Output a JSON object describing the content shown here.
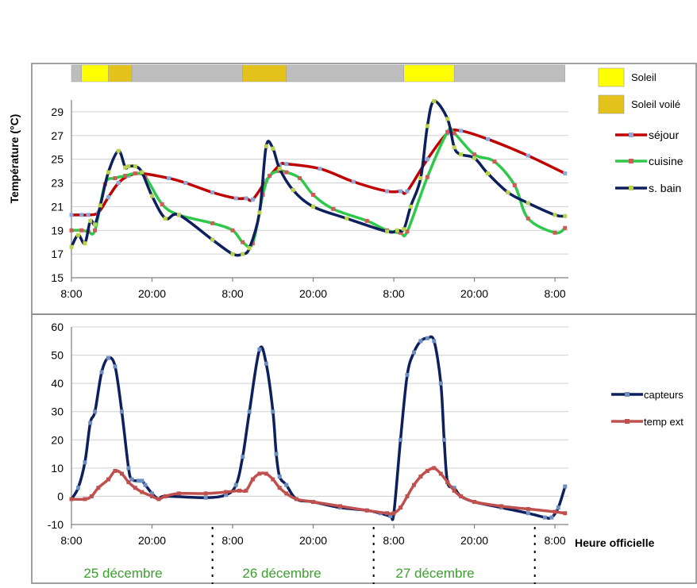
{
  "chart_data": [
    {
      "type": "line",
      "ylabel": "Température (°C)",
      "ylim": [
        15,
        30
      ],
      "yticks": [
        15,
        17,
        19,
        21,
        23,
        25,
        27,
        29
      ],
      "x_unit": "hours since 25 décembre 00:00",
      "xlim": [
        8,
        82
      ],
      "xticks": [
        {
          "x": 8,
          "label": "8:00"
        },
        {
          "x": 20,
          "label": "20:00"
        },
        {
          "x": 32,
          "label": "8:00"
        },
        {
          "x": 44,
          "label": "20:00"
        },
        {
          "x": 56,
          "label": "8:00"
        },
        {
          "x": 68,
          "label": "20:00"
        },
        {
          "x": 80,
          "label": "8:00"
        }
      ],
      "grid": true,
      "sun_bar": {
        "segments": [
          {
            "start": 8.0,
            "end": 9.5,
            "state": "couvert"
          },
          {
            "start": 9.5,
            "end": 13.5,
            "state": "Soleil"
          },
          {
            "start": 13.5,
            "end": 17.0,
            "state": "Soleil voilé"
          },
          {
            "start": 17.0,
            "end": 33.5,
            "state": "couvert"
          },
          {
            "start": 33.5,
            "end": 40.0,
            "state": "Soleil voilé"
          },
          {
            "start": 40.0,
            "end": 57.5,
            "state": "couvert"
          },
          {
            "start": 57.5,
            "end": 65.0,
            "state": "Soleil"
          },
          {
            "start": 65.0,
            "end": 81.5,
            "state": "couvert"
          }
        ],
        "colors": {
          "Soleil": "#ffff00",
          "Soleil voilé": "#e2c21b",
          "couvert": "#bdbdbd"
        }
      },
      "legend": [
        {
          "label": "Soleil",
          "kind": "box",
          "color": "#ffff00"
        },
        {
          "label": "Soleil voilé",
          "kind": "box",
          "color": "#e2c21b"
        },
        {
          "label": "séjour",
          "kind": "line",
          "color": "#c00000",
          "marker": "#8fa8d8"
        },
        {
          "label": "cuisine",
          "kind": "line",
          "color": "#2ec94a",
          "marker": "#d05a5a"
        },
        {
          "label": "s. bain",
          "kind": "line",
          "color": "#0d1f5c",
          "marker": "#b8d24c"
        }
      ],
      "series": [
        {
          "name": "séjour",
          "color": "#c00000",
          "marker_color": "#8fa8d8",
          "x": [
            8.0,
            9.5,
            10.5,
            12.0,
            13.5,
            15.0,
            16.5,
            18.5,
            22.5,
            25.0,
            29.0,
            32.5,
            34.0,
            35.0,
            37.0,
            39.0,
            40.0,
            45.0,
            50.0,
            55.0,
            57.0,
            58.0,
            61.0,
            64.0,
            66.0,
            70.0,
            76.0,
            81.5
          ],
          "y": [
            20.3,
            20.3,
            20.3,
            20.5,
            21.8,
            23.0,
            23.6,
            23.8,
            23.4,
            23.0,
            22.2,
            21.7,
            21.7,
            21.6,
            23.2,
            24.5,
            24.6,
            24.2,
            23.1,
            22.3,
            22.3,
            22.3,
            25.0,
            27.2,
            27.4,
            26.7,
            25.3,
            23.8
          ]
        },
        {
          "name": "cuisine",
          "color": "#2ec94a",
          "marker_color": "#d05a5a",
          "x": [
            8.0,
            9.5,
            10.5,
            11.5,
            13.0,
            14.5,
            16.0,
            17.5,
            19.0,
            21.5,
            24.0,
            29.0,
            32.0,
            33.5,
            35.0,
            36.5,
            37.5,
            39.0,
            40.0,
            42.0,
            44.0,
            47.0,
            52.0,
            55.0,
            57.0,
            58.0,
            61.0,
            64.0,
            65.0,
            68.0,
            71.0,
            74.0,
            76.0,
            80.0,
            81.5
          ],
          "y": [
            19.0,
            19.0,
            18.9,
            19.0,
            22.9,
            23.4,
            23.6,
            23.8,
            23.5,
            21.2,
            20.3,
            19.6,
            19.0,
            18.0,
            17.9,
            22.0,
            23.6,
            24.0,
            23.9,
            23.4,
            22.0,
            20.8,
            19.8,
            19.0,
            18.8,
            18.9,
            23.5,
            27.3,
            27.2,
            25.4,
            24.8,
            22.8,
            20.0,
            18.8,
            19.2
          ]
        },
        {
          "name": "s. bain",
          "color": "#0d1f5c",
          "marker_color": "#b8d24c",
          "x": [
            8.0,
            9.0,
            10.0,
            10.8,
            11.5,
            12.3,
            13.5,
            15.0,
            16.0,
            16.5,
            17.5,
            18.5,
            20.0,
            22.0,
            24.0,
            29.0,
            32.0,
            33.5,
            34.5,
            36.0,
            37.0,
            38.0,
            39.0,
            41.0,
            44.0,
            49.0,
            55.0,
            56.5,
            57.5,
            58.5,
            60.0,
            61.0,
            62.0,
            64.0,
            65.0,
            66.0,
            68.0,
            70.0,
            73.0,
            76.0,
            80.0,
            81.5
          ],
          "y": [
            17.6,
            18.6,
            17.9,
            19.8,
            19.5,
            21.1,
            23.9,
            25.7,
            24.3,
            24.4,
            24.4,
            23.9,
            21.9,
            20.0,
            20.3,
            18.2,
            17.0,
            17.0,
            17.5,
            20.5,
            26.1,
            25.9,
            24.2,
            22.4,
            21.0,
            20.0,
            18.9,
            19.0,
            19.1,
            21.0,
            23.4,
            27.8,
            29.9,
            28.4,
            26.0,
            25.4,
            25.1,
            23.8,
            22.2,
            21.3,
            20.3,
            20.2
          ]
        }
      ]
    },
    {
      "type": "line",
      "xlabel": "Heure officielle",
      "ylim": [
        -10,
        60
      ],
      "yticks": [
        -10,
        0,
        10,
        20,
        30,
        40,
        50,
        60
      ],
      "x_unit": "hours since 25 décembre 00:00",
      "xlim": [
        8,
        82
      ],
      "xticks": [
        {
          "x": 8,
          "label": "8:00"
        },
        {
          "x": 20,
          "label": "20:00"
        },
        {
          "x": 32,
          "label": "8:00"
        },
        {
          "x": 44,
          "label": "20:00"
        },
        {
          "x": 56,
          "label": "8:00"
        },
        {
          "x": 68,
          "label": "20:00"
        },
        {
          "x": 80,
          "label": "8:00"
        }
      ],
      "grid": true,
      "day_separators": [
        29.0,
        53.0,
        77.0
      ],
      "day_labels": [
        {
          "label": "25 décembre",
          "center": 18.0
        },
        {
          "label": "26 décembre",
          "center": 42.0
        },
        {
          "label": "27 décembre",
          "center": 66.0
        }
      ],
      "legend": [
        {
          "label": "capteurs",
          "color": "#0d1f5c",
          "marker": "#6f8fc0"
        },
        {
          "label": "temp ext",
          "color": "#c0504d",
          "marker": "#c0504d"
        }
      ],
      "series": [
        {
          "name": "capteurs",
          "color": "#0d1f5c",
          "marker_color": "#6f8fc0",
          "x": [
            8.0,
            9.0,
            10.0,
            10.8,
            11.5,
            12.5,
            13.5,
            14.5,
            15.5,
            16.5,
            17.0,
            18.0,
            18.5,
            19.0,
            20.0,
            21.0,
            22.0,
            28.0,
            31.0,
            32.5,
            33.5,
            34.5,
            36.0,
            37.0,
            38.0,
            38.5,
            39.0,
            40.0,
            41.5,
            44.0,
            48.0,
            52.0,
            54.0,
            55.5,
            56.0,
            57.0,
            58.0,
            59.0,
            60.0,
            61.0,
            62.0,
            63.0,
            63.5,
            64.0,
            65.0,
            66.0,
            68.0,
            72.0,
            76.0,
            78.5,
            79.5,
            80.5,
            81.5
          ],
          "y": [
            -1,
            3,
            12,
            26,
            30,
            44,
            49,
            46,
            30,
            10,
            6,
            5.5,
            5.5,
            4,
            1,
            -1,
            0,
            -0.5,
            0.5,
            4,
            14,
            30,
            52,
            47,
            30,
            15,
            7,
            4,
            -1,
            -2,
            -4,
            -5,
            -6,
            -7,
            -6,
            20,
            43,
            51,
            55,
            56,
            55,
            40,
            20,
            5,
            3,
            0,
            -2,
            -4,
            -6,
            -7.5,
            -7.5,
            -4,
            3.5
          ]
        },
        {
          "name": "temp ext",
          "color": "#c0504d",
          "marker_color": "#c0504d",
          "x": [
            8.0,
            10.0,
            11.0,
            12.0,
            13.5,
            14.5,
            15.5,
            16.5,
            17.5,
            18.5,
            20.0,
            21.0,
            22.0,
            24.0,
            28.0,
            31.0,
            33.0,
            34.0,
            35.0,
            36.0,
            37.0,
            38.0,
            39.0,
            40.0,
            41.5,
            44.0,
            48.0,
            52.0,
            55.0,
            56.0,
            57.0,
            58.0,
            59.0,
            60.0,
            61.0,
            62.0,
            63.0,
            64.0,
            65.0,
            66.0,
            68.0,
            72.0,
            76.0,
            80.0,
            81.5
          ],
          "y": [
            -1,
            -1,
            0,
            3,
            6,
            9,
            8,
            5,
            3,
            1.5,
            0,
            -1,
            0,
            1,
            1,
            1.5,
            2,
            2,
            6,
            8,
            8,
            6,
            3,
            1,
            -1,
            -2,
            -3.5,
            -5,
            -6,
            -6,
            -4,
            0,
            4,
            7,
            9,
            10,
            8,
            5,
            2,
            0,
            -2,
            -3.5,
            -4.5,
            -5.5,
            -6
          ]
        }
      ]
    }
  ]
}
